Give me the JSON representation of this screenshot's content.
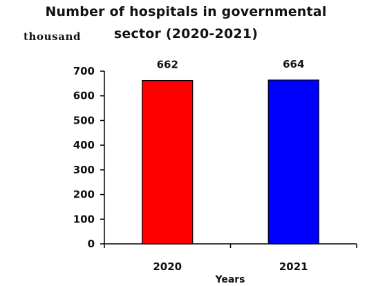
{
  "chart_data": {
    "type": "bar",
    "title_line1": "Number of hospitals  in governmental",
    "title_line2": "sector (2020-2021)",
    "ylabel": "thousand",
    "xlabel": "Years",
    "categories": [
      "2020",
      "2021"
    ],
    "values": [
      662,
      664
    ],
    "data_labels": [
      "662",
      "664"
    ],
    "colors": [
      "#ff0000",
      "#0000ff"
    ],
    "yticks": [
      "0",
      "100",
      "200",
      "300",
      "400",
      "500",
      "600",
      "700"
    ],
    "ylim": [
      0,
      700
    ],
    "grid": false,
    "legend": "none"
  }
}
